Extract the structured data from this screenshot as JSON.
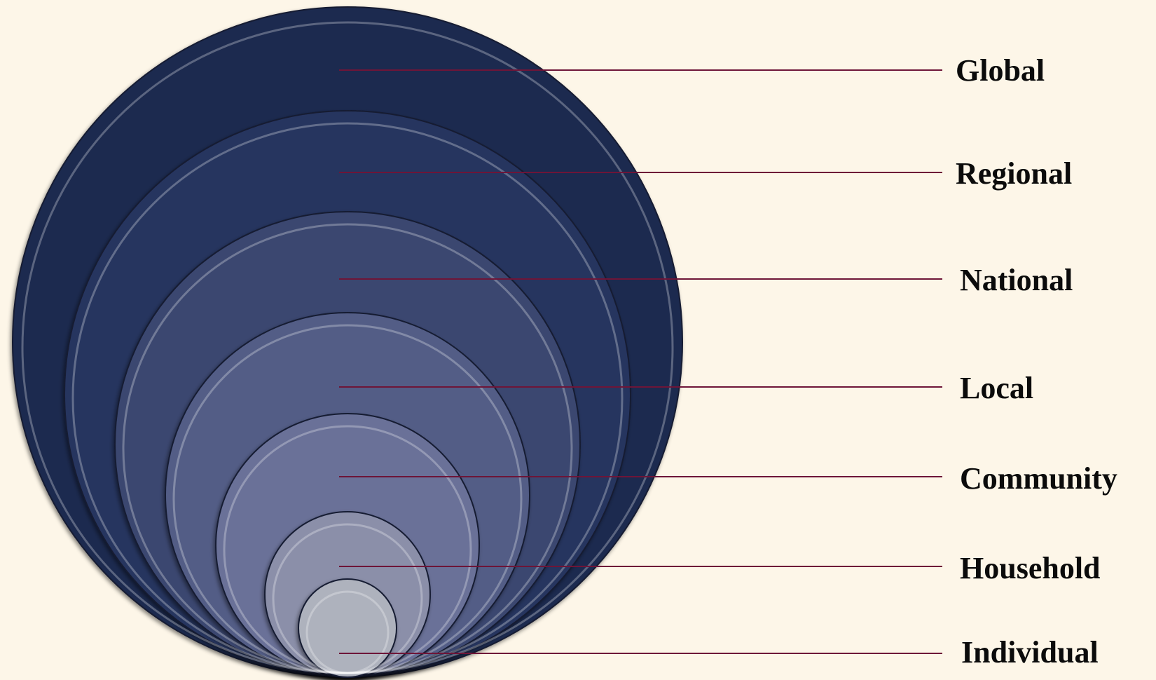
{
  "diagram": {
    "levels": [
      {
        "id": "global",
        "label": "Global",
        "color": "#1e2a4f"
      },
      {
        "id": "regional",
        "label": "Regional",
        "color": "#28345f"
      },
      {
        "id": "national",
        "label": "National",
        "color": "#3a466f"
      },
      {
        "id": "local",
        "label": "Local",
        "color": "#525d86"
      },
      {
        "id": "community",
        "label": "Community",
        "color": "#6a7198"
      },
      {
        "id": "household",
        "label": "Household",
        "color": "#8b8fa9"
      },
      {
        "id": "individual",
        "label": "Individual",
        "color": "#aeb2bd"
      }
    ],
    "leader_line_color": "#6e1538",
    "background_color": "#fdf6e8"
  }
}
